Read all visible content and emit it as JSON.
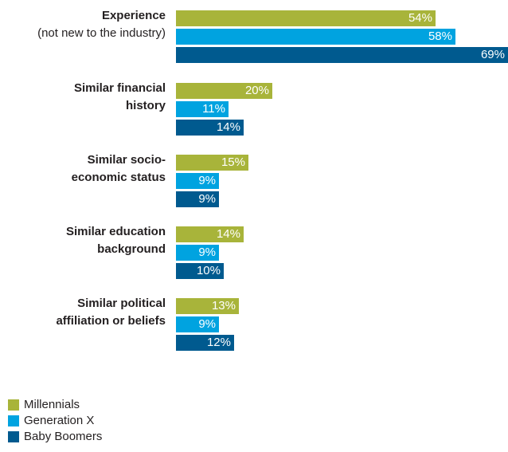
{
  "chart_data": {
    "type": "bar",
    "orientation": "horizontal",
    "categories": [
      {
        "lines": [
          "Experience"
        ],
        "subtitle": "(not new to the industry)"
      },
      {
        "lines": [
          "Similar financial",
          "history"
        ],
        "subtitle": ""
      },
      {
        "lines": [
          "Similar socio-",
          "economic status"
        ],
        "subtitle": ""
      },
      {
        "lines": [
          "Similar education",
          "background"
        ],
        "subtitle": ""
      },
      {
        "lines": [
          "Similar political",
          "affiliation or beliefs"
        ],
        "subtitle": ""
      }
    ],
    "series": [
      {
        "name": "Millennials",
        "color": "#a8b43a",
        "values": [
          54,
          20,
          15,
          14,
          13
        ],
        "labels": [
          "54%",
          "20%",
          "15%",
          "14%",
          "13%"
        ]
      },
      {
        "name": "Generation X",
        "color": "#00a3e0",
        "values": [
          58,
          11,
          9,
          9,
          9
        ],
        "labels": [
          "58%",
          "11%",
          "9%",
          "9%",
          "9%"
        ]
      },
      {
        "name": "Baby Boomers",
        "color": "#005a8f",
        "values": [
          69,
          14,
          9,
          10,
          12
        ],
        "labels": [
          "69%",
          "14%",
          "9%",
          "10%",
          "12%"
        ]
      }
    ],
    "xlim": [
      0,
      69
    ],
    "legend_position": "bottom-left",
    "grid": false
  }
}
